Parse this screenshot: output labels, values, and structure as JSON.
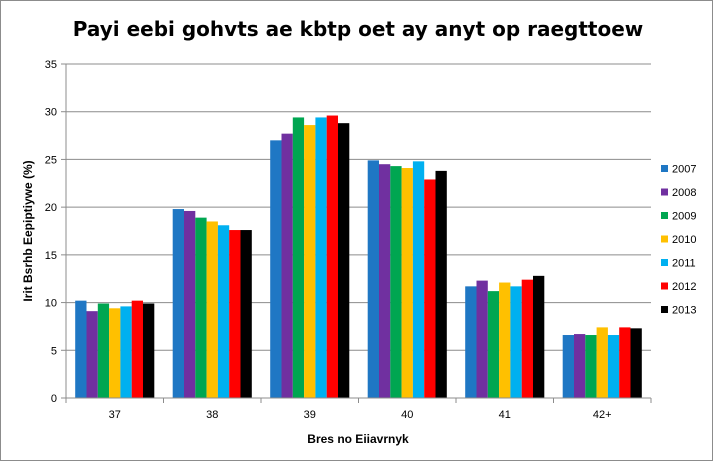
{
  "chart_data": {
    "type": "bar",
    "title": "Payi eebi gohvts ae kbtp oet ay anyt op raegttoew",
    "xlabel": "Bres no Eiiavrnyk",
    "ylabel": "Irit Bsrhb Eepiptiywe (%)",
    "categories": [
      "37",
      "38",
      "39",
      "40",
      "41",
      "42+"
    ],
    "ylim": [
      0,
      35
    ],
    "yticks": [
      "0",
      "5",
      "10",
      "15",
      "20",
      "25",
      "30",
      "35"
    ],
    "grid": true,
    "legend_position": "right",
    "series": [
      {
        "name": "2007",
        "color": "#1f77c4",
        "values": [
          10.2,
          19.8,
          27.0,
          24.9,
          11.7,
          6.6
        ]
      },
      {
        "name": "2008",
        "color": "#7030a0",
        "values": [
          9.1,
          19.6,
          27.7,
          24.5,
          12.3,
          6.7
        ]
      },
      {
        "name": "2009",
        "color": "#00a651",
        "values": [
          9.9,
          18.9,
          29.4,
          24.3,
          11.2,
          6.6
        ]
      },
      {
        "name": "2010",
        "color": "#ffc000",
        "values": [
          9.4,
          18.5,
          28.6,
          24.1,
          12.1,
          7.4
        ]
      },
      {
        "name": "2011",
        "color": "#00b0f0",
        "values": [
          9.6,
          18.1,
          29.4,
          24.8,
          11.7,
          6.6
        ]
      },
      {
        "name": "2012",
        "color": "#ff0000",
        "values": [
          10.2,
          17.6,
          29.6,
          22.9,
          12.4,
          7.4
        ]
      },
      {
        "name": "2013",
        "color": "#000000",
        "values": [
          9.9,
          17.6,
          28.8,
          23.8,
          12.8,
          7.3
        ]
      }
    ]
  }
}
